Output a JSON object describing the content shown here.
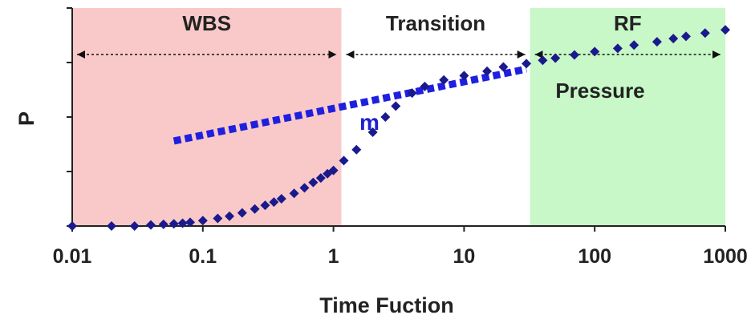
{
  "chart_data": {
    "type": "scatter",
    "xlabel": "Time Fuction",
    "ylabel": "P",
    "x_scale": "log",
    "xlim": [
      0.01,
      1000
    ],
    "ylim": [
      0,
      1
    ],
    "x_ticks": [
      "0.01",
      "0.1",
      "1",
      "10",
      "100",
      "1000"
    ],
    "y_ticks": [
      0,
      0.25,
      0.5,
      0.75,
      1
    ],
    "regions": [
      {
        "label": "WBS",
        "x_start": 0.01,
        "x_end": 1.15,
        "color": "#f9c9c9"
      },
      {
        "label": "Transition",
        "x_start": 1.15,
        "x_end": 32,
        "color": "#ffffff"
      },
      {
        "label": "RF",
        "x_start": 32,
        "x_end": 1000,
        "color": "#c8f7c8"
      }
    ],
    "annotations": {
      "slope_label": "m",
      "curve_label": "Pressure"
    },
    "series": [
      {
        "name": "Pressure",
        "color": "#1a1a8c",
        "x": [
          0.01,
          0.02,
          0.03,
          0.04,
          0.05,
          0.06,
          0.07,
          0.08,
          0.1,
          0.13,
          0.16,
          0.2,
          0.25,
          0.3,
          0.35,
          0.4,
          0.5,
          0.6,
          0.7,
          0.8,
          0.9,
          1.0,
          1.2,
          1.5,
          2,
          2.5,
          3,
          4,
          5,
          7,
          10,
          15,
          20,
          30,
          40,
          50,
          70,
          100,
          150,
          200,
          300,
          400,
          500,
          700,
          1000
        ],
        "y": [
          0.0,
          0.0,
          0.0,
          0.005,
          0.008,
          0.01,
          0.013,
          0.017,
          0.025,
          0.035,
          0.045,
          0.06,
          0.078,
          0.095,
          0.11,
          0.125,
          0.15,
          0.175,
          0.2,
          0.22,
          0.24,
          0.255,
          0.3,
          0.35,
          0.43,
          0.5,
          0.55,
          0.61,
          0.64,
          0.67,
          0.69,
          0.71,
          0.73,
          0.745,
          0.76,
          0.77,
          0.785,
          0.8,
          0.815,
          0.83,
          0.845,
          0.86,
          0.87,
          0.885,
          0.9
        ]
      },
      {
        "name": "m",
        "color": "#1f1fe0",
        "style": "dotted",
        "x": [
          0.06,
          30
        ],
        "y": [
          0.39,
          0.72
        ]
      }
    ]
  }
}
